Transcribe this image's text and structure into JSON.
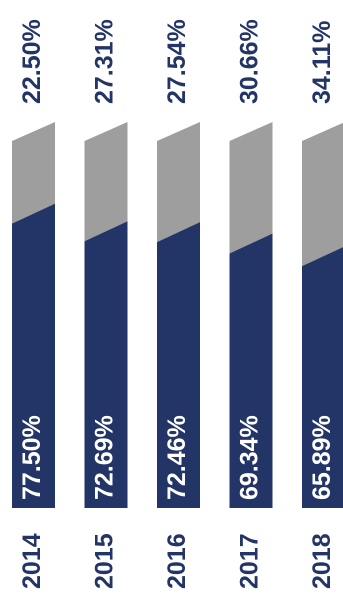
{
  "colors": {
    "primary": "#233566",
    "secondary": "#9e9e9e",
    "top_label_text": "#233566",
    "bar_label_text": "#ffffff",
    "year_text": "#233566"
  },
  "chart_data": {
    "type": "bar",
    "stacked": true,
    "orientation": "vertical-bars-rotated-labels",
    "categories": [
      "2014",
      "2015",
      "2016",
      "2017",
      "2018"
    ],
    "series": [
      {
        "values": [
          77.5,
          72.69,
          72.46,
          69.34,
          65.89
        ],
        "labels": [
          "77.50%",
          "72.69%",
          "72.46%",
          "69.34%",
          "65.89%"
        ]
      },
      {
        "values": [
          22.5,
          27.31,
          27.54,
          30.66,
          34.11
        ],
        "labels": [
          "22.50%",
          "27.31%",
          "27.54%",
          "30.66%",
          "34.11%"
        ]
      }
    ],
    "ylim": [
      0,
      100
    ],
    "grid": false,
    "legend": "none",
    "title": "",
    "xlabel": "",
    "ylabel": ""
  }
}
